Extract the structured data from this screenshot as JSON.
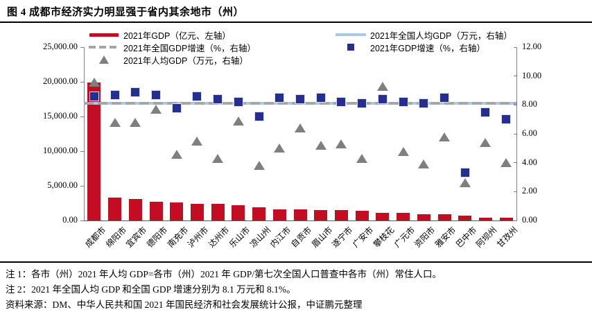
{
  "title": "图 4  成都市经济实力明显强于省内其余地市（州）",
  "legend": {
    "gdp_bar": "2021年GDP（亿元、左轴）",
    "national_growth_line": "2021年全国GDP增速（%，右轴）",
    "per_capita_marker": "2021年人均GDP（万元，右轴）",
    "national_per_capita_line": "2021年全国人均GDP（万元，右轴）",
    "growth_marker": "2021年GDP增速（%，右轴）"
  },
  "colors": {
    "bar_red": "#c30d23",
    "square_navy": "#262f8f",
    "triangle_gray": "#7f7f7f",
    "national_per_capita_blue": "#a9c9e6",
    "national_growth_gray": "#a6a6a6",
    "axis_gray": "#808080"
  },
  "chart_data": {
    "type": "bar",
    "subtype": "combo-bar-scatter-hlines",
    "categories": [
      "成都市",
      "绵阳市",
      "宜宾市",
      "德阳市",
      "南充市",
      "泸州市",
      "达州市",
      "乐山市",
      "凉山州",
      "内江市",
      "自贡市",
      "眉山市",
      "遂宁市",
      "广安市",
      "攀枝花",
      "广元市",
      "资阳市",
      "雅安市",
      "巴中市",
      "阿坝州",
      "甘孜州"
    ],
    "series": [
      {
        "name": "2021年GDP（亿元、左轴）",
        "type": "bar",
        "axis": "left",
        "color": "#c30d23",
        "values": [
          19917,
          3350,
          3148,
          2657,
          2602,
          2406,
          2351,
          2205,
          1901,
          1605,
          1601,
          1547,
          1466,
          1390,
          1134,
          1083,
          913,
          852,
          736,
          426,
          440
        ]
      },
      {
        "name": "2021年人均GDP（万元，右轴）",
        "type": "scatter-triangle",
        "axis": "right",
        "color": "#7f7f7f",
        "values": [
          9.6,
          6.8,
          6.8,
          7.7,
          4.6,
          5.5,
          4.3,
          6.9,
          3.8,
          5.0,
          6.4,
          5.2,
          5.3,
          4.3,
          9.3,
          4.8,
          3.9,
          5.8,
          2.6,
          5.4,
          4.0
        ]
      },
      {
        "name": "2021年GDP增速（%，右轴）",
        "type": "scatter-square",
        "axis": "right",
        "color": "#262f8f",
        "values": [
          8.6,
          8.7,
          8.9,
          8.7,
          7.8,
          8.6,
          8.4,
          8.2,
          7.2,
          8.5,
          8.4,
          8.5,
          8.2,
          8.1,
          8.4,
          8.2,
          8.1,
          8.5,
          3.3,
          7.5,
          7.0
        ]
      },
      {
        "name": "2021年全国人均GDP（万元，右轴）",
        "type": "hline",
        "axis": "right",
        "color": "#a9c9e6",
        "value": 8.1
      },
      {
        "name": "2021年全国GDP增速（%，右轴）",
        "type": "hline-dashed",
        "axis": "right",
        "color": "#a6a6a6",
        "value": 8.1
      }
    ],
    "left_axis": {
      "title": "",
      "min": 0,
      "max": 25000,
      "ticks": [
        "0.00",
        "5,000.00",
        "10,000.00",
        "15,000.00",
        "20,000.00",
        "25,000.00"
      ]
    },
    "right_axis": {
      "title": "",
      "min": 0,
      "max": 12,
      "ticks": [
        "0.00",
        "2.00",
        "4.00",
        "6.00",
        "8.00",
        "10.00",
        "12.00"
      ]
    },
    "legend_position": "top",
    "grid": false
  },
  "notes": {
    "note1": "注 1：各市（州）2021 年人均 GDP=各市（州）2021 年 GDP/第七次全国人口普查中各市（州）常住人口。",
    "note2": "注 2：2021 年全国人均 GDP 和全国 GDP 增速分别为 8.1 万元和 8.1%。",
    "source": "资料来源：DM、中华人民共和国 2021 年国民经济和社会发展统计公报，中证鹏元整理"
  }
}
